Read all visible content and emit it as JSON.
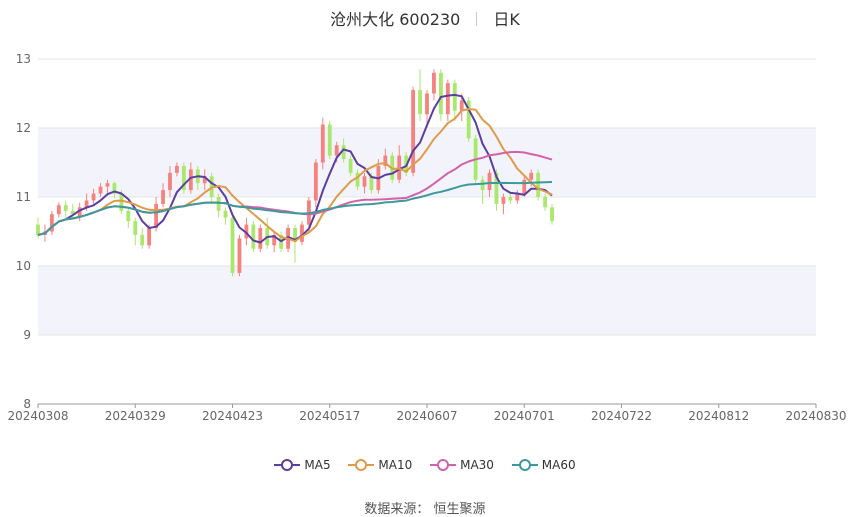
{
  "header": {
    "stock": "沧州大化 600230",
    "period": "日K"
  },
  "source": "数据来源： 恒生聚源",
  "colors": {
    "up": "#f4827f",
    "down": "#a9e86c",
    "band": "#f3f4fb",
    "grid": "#e6e6e6",
    "axis": "#999999",
    "ma5": "#5b3ea0",
    "ma10": "#df9a4a",
    "ma30": "#d163ab",
    "ma60": "#3e9a9a"
  },
  "chart_data": {
    "type": "candlestick",
    "title": "沧州大化 600230 日K",
    "ylim": [
      8,
      13
    ],
    "yticks": [
      8,
      9,
      10,
      11,
      12,
      13
    ],
    "xtick_labels": [
      "20240308",
      "20240329",
      "20240423",
      "20240517",
      "20240607",
      "20240701",
      "20240722",
      "20240812",
      "20240830"
    ],
    "xtick_index": [
      0,
      14,
      28,
      42,
      56,
      70,
      84,
      98,
      112
    ],
    "legend": [
      "MA5",
      "MA10",
      "MA30",
      "MA60"
    ],
    "ohlc": [
      [
        10.6,
        10.45,
        10.7,
        10.4
      ],
      [
        10.45,
        10.5,
        10.6,
        10.35
      ],
      [
        10.5,
        10.75,
        10.8,
        10.45
      ],
      [
        10.75,
        10.88,
        10.92,
        10.7
      ],
      [
        10.88,
        10.8,
        10.95,
        10.7
      ],
      [
        10.8,
        10.75,
        10.9,
        10.7
      ],
      [
        10.72,
        10.85,
        10.92,
        10.65
      ],
      [
        10.85,
        10.95,
        11.05,
        10.8
      ],
      [
        10.95,
        11.05,
        11.12,
        10.9
      ],
      [
        11.05,
        11.15,
        11.2,
        11.0
      ],
      [
        11.15,
        11.2,
        11.25,
        11.05
      ],
      [
        11.2,
        11.05,
        11.22,
        10.98
      ],
      [
        11.05,
        10.8,
        11.1,
        10.75
      ],
      [
        10.8,
        10.65,
        10.85,
        10.55
      ],
      [
        10.65,
        10.45,
        10.7,
        10.3
      ],
      [
        10.45,
        10.3,
        10.55,
        10.25
      ],
      [
        10.3,
        10.55,
        10.6,
        10.25
      ],
      [
        10.55,
        10.9,
        11.0,
        10.5
      ],
      [
        10.9,
        11.1,
        11.2,
        10.85
      ],
      [
        11.1,
        11.35,
        11.45,
        11.0
      ],
      [
        11.35,
        11.45,
        11.5,
        11.3
      ],
      [
        11.45,
        11.1,
        11.5,
        11.05
      ],
      [
        11.1,
        11.4,
        11.5,
        11.05
      ],
      [
        11.4,
        11.2,
        11.45,
        11.1
      ],
      [
        11.2,
        11.3,
        11.4,
        11.1
      ],
      [
        11.3,
        11.0,
        11.35,
        10.9
      ],
      [
        11.0,
        10.8,
        11.05,
        10.7
      ],
      [
        10.8,
        10.7,
        10.85,
        10.6
      ],
      [
        10.7,
        9.9,
        10.75,
        9.85
      ],
      [
        9.9,
        10.4,
        10.45,
        9.85
      ],
      [
        10.4,
        10.6,
        10.7,
        10.3
      ],
      [
        10.6,
        10.25,
        10.65,
        10.2
      ],
      [
        10.25,
        10.55,
        10.6,
        10.2
      ],
      [
        10.55,
        10.3,
        10.7,
        10.25
      ],
      [
        10.3,
        10.45,
        10.5,
        10.2
      ],
      [
        10.45,
        10.25,
        10.5,
        10.2
      ],
      [
        10.25,
        10.55,
        10.6,
        10.2
      ],
      [
        10.55,
        10.35,
        10.6,
        10.05
      ],
      [
        10.35,
        10.6,
        10.65,
        10.3
      ],
      [
        10.6,
        10.95,
        11.0,
        10.5
      ],
      [
        10.95,
        11.5,
        11.55,
        10.85
      ],
      [
        11.5,
        12.05,
        12.15,
        11.4
      ],
      [
        12.05,
        11.6,
        12.1,
        11.55
      ],
      [
        11.6,
        11.75,
        11.8,
        11.5
      ],
      [
        11.75,
        11.55,
        11.85,
        11.5
      ],
      [
        11.55,
        11.35,
        11.6,
        11.3
      ],
      [
        11.35,
        11.15,
        11.4,
        11.1
      ],
      [
        11.15,
        11.3,
        11.35,
        11.05
      ],
      [
        11.3,
        11.1,
        11.35,
        11.05
      ],
      [
        11.1,
        11.45,
        11.55,
        11.05
      ],
      [
        11.45,
        11.6,
        11.7,
        11.4
      ],
      [
        11.6,
        11.25,
        11.65,
        11.2
      ],
      [
        11.25,
        11.6,
        11.75,
        11.2
      ],
      [
        11.6,
        11.35,
        11.65,
        11.3
      ],
      [
        11.35,
        12.55,
        12.6,
        11.3
      ],
      [
        12.55,
        12.2,
        12.85,
        12.1
      ],
      [
        12.2,
        12.5,
        12.55,
        12.0
      ],
      [
        12.5,
        12.8,
        12.85,
        12.4
      ],
      [
        12.8,
        12.2,
        12.85,
        12.1
      ],
      [
        12.2,
        12.65,
        12.7,
        12.1
      ],
      [
        12.65,
        12.25,
        12.7,
        12.1
      ],
      [
        12.25,
        12.4,
        12.5,
        12.1
      ],
      [
        12.4,
        11.85,
        12.45,
        11.8
      ],
      [
        11.85,
        11.25,
        11.9,
        11.2
      ],
      [
        11.25,
        11.1,
        11.3,
        10.9
      ],
      [
        11.1,
        11.35,
        11.4,
        11.0
      ],
      [
        11.35,
        10.9,
        11.4,
        10.8
      ],
      [
        10.9,
        11.0,
        11.05,
        10.75
      ],
      [
        11.0,
        10.95,
        11.05,
        10.9
      ],
      [
        10.95,
        11.05,
        11.1,
        10.9
      ],
      [
        11.05,
        11.25,
        11.3,
        11.0
      ],
      [
        11.25,
        11.35,
        11.4,
        11.15
      ],
      [
        11.35,
        11.0,
        11.4,
        10.95
      ],
      [
        11.0,
        10.85,
        11.05,
        10.8
      ],
      [
        10.85,
        10.65,
        10.9,
        10.6
      ]
    ]
  }
}
